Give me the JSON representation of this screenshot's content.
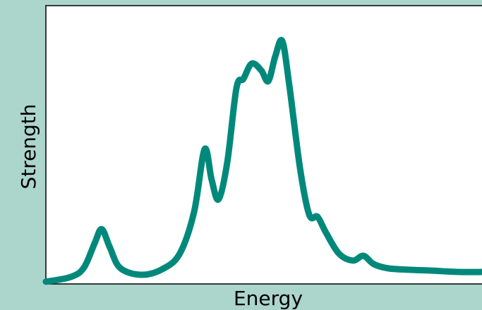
{
  "chart_data": {
    "type": "line",
    "x_label": "Energy",
    "y_label": "Strength",
    "x": [
      0,
      5.7,
      8.7,
      11.2,
      12.8,
      14.6,
      17.0,
      21.8,
      26.7,
      30.7,
      34.0,
      36.4,
      38.0,
      39.6,
      41.6,
      43.7,
      45.3,
      47.2,
      49.4,
      51.0,
      52.6,
      54.2,
      55.8,
      58.3,
      60.4,
      62.3,
      64.2,
      67.2,
      70.4,
      72.8,
      75.2,
      78.5,
      83.3,
      88.2,
      94.7,
      100
    ],
    "series": [
      {
        "color": "#00897b",
        "values": [
          0.8,
          2.5,
          5.8,
          14.7,
          19.7,
          13.4,
          5.8,
          3.3,
          5.3,
          10.9,
          26,
          48.4,
          37.5,
          30.4,
          43.8,
          70.4,
          73.7,
          79.2,
          76.7,
          72.9,
          81.8,
          87.3,
          71.6,
          41.3,
          24.8,
          24.1,
          18.5,
          10.9,
          8.4,
          10.1,
          7.1,
          5.6,
          5.1,
          4.8,
          4.3,
          4.3
        ]
      }
    ],
    "xlim": [
      0,
      100
    ],
    "ylim": [
      0,
      100
    ]
  }
}
